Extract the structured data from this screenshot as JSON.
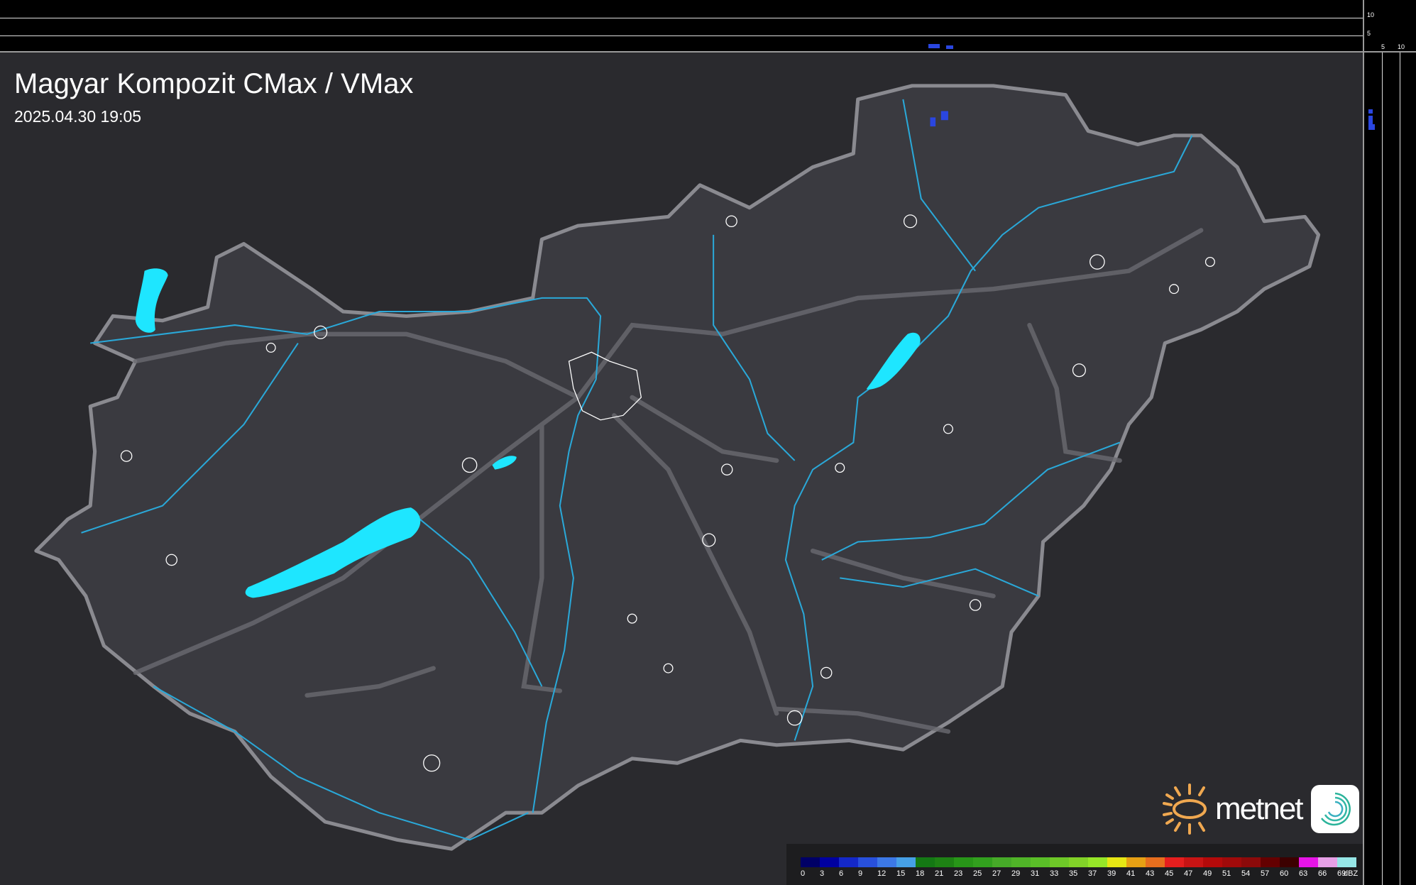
{
  "header": {
    "title": "Magyar Kompozit CMax / VMax",
    "timestamp": "2025.04.30 19:05"
  },
  "profile_axes": {
    "top_ticks": [
      "10",
      "5"
    ],
    "right_ticks": [
      "5",
      "10"
    ]
  },
  "legend": {
    "unit": "dBZ",
    "labels": [
      "0",
      "3",
      "6",
      "9",
      "12",
      "15",
      "18",
      "21",
      "23",
      "25",
      "27",
      "29",
      "31",
      "33",
      "35",
      "37",
      "39",
      "41",
      "43",
      "45",
      "47",
      "49",
      "51",
      "54",
      "57",
      "60",
      "63",
      "66",
      "69"
    ],
    "colors": [
      "#000066",
      "#0000a0",
      "#1428c8",
      "#2850dc",
      "#3c78e6",
      "#46a0e6",
      "#147814",
      "#1e8214",
      "#289618",
      "#32a01e",
      "#46aa28",
      "#50b428",
      "#5abe28",
      "#6ec828",
      "#82d228",
      "#96e628",
      "#e6e614",
      "#e6a014",
      "#e66e1e",
      "#e61e1e",
      "#c81414",
      "#b40a0a",
      "#a00a0a",
      "#8c0a0a",
      "#640000",
      "#3c0000",
      "#e614e6",
      "#e6a0e6",
      "#96e6e6"
    ]
  },
  "map_colors": {
    "water": "#1ee6ff",
    "rivers": "#2aa8d8",
    "border": "#8a8a90",
    "echo": "#2a46e0"
  },
  "logo": {
    "brand": "metnet"
  }
}
